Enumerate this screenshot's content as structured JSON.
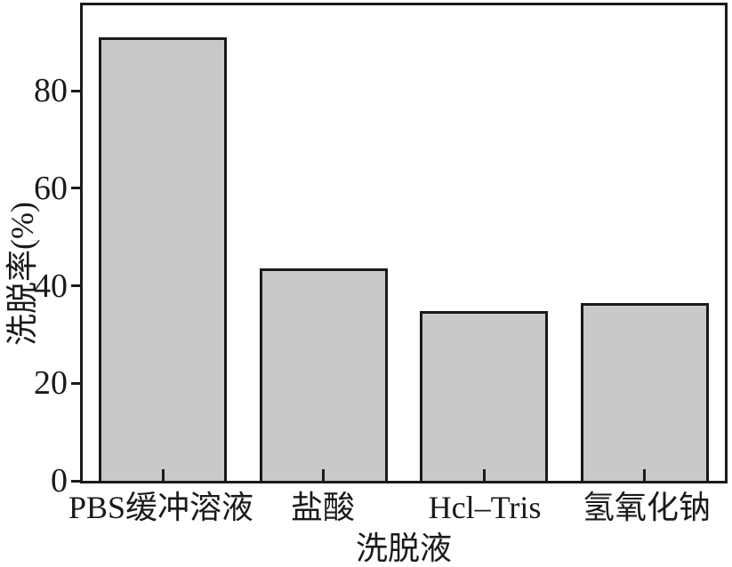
{
  "figure": {
    "background": "#ffffff",
    "bar_fill": "#c9c9c9",
    "bar_border": "#1a1a1a",
    "axis_color": "#1a1a1a",
    "text_color": "#1a1a1a"
  },
  "chart_data": {
    "type": "bar",
    "title": "",
    "xlabel": "洗脱液",
    "ylabel": "洗脱率(%)",
    "categories": [
      "PBS缓冲溶液",
      "盐酸",
      "Hcl–Tris",
      "氢氧化钠"
    ],
    "values": [
      91,
      43.5,
      34.8,
      36.4
    ],
    "ylim": [
      0,
      97.5
    ],
    "yticks": [
      0,
      20,
      40,
      60,
      80
    ],
    "grid": false,
    "legend_position": "none",
    "bar_width_fraction": 0.2
  }
}
